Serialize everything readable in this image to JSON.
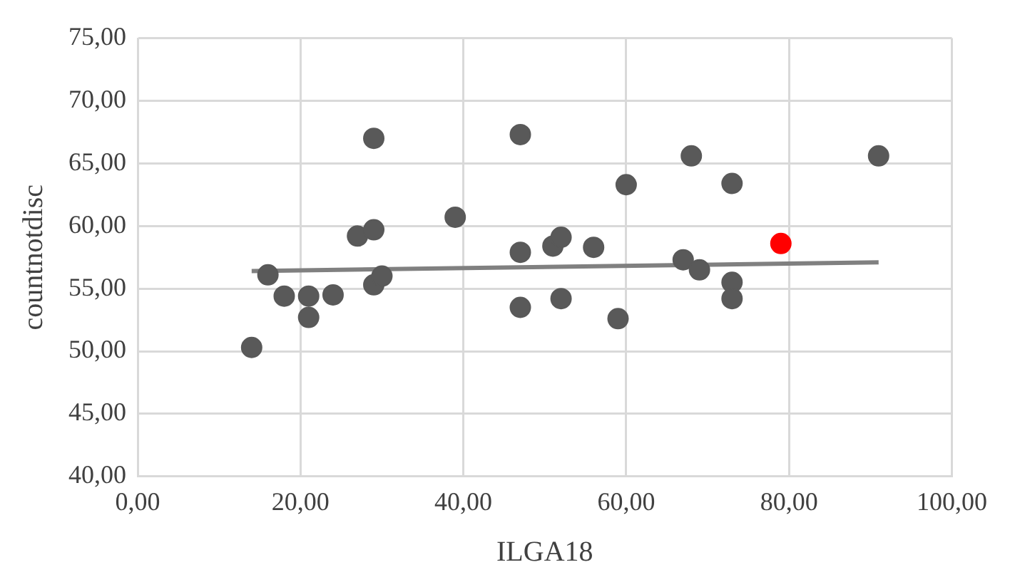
{
  "chart_data": {
    "type": "scatter",
    "xlabel": "ILGA18",
    "ylabel": "countnotdisc",
    "xlim": [
      0,
      100
    ],
    "ylim": [
      40,
      75
    ],
    "xticks": [
      {
        "value": 0,
        "label": "0,00"
      },
      {
        "value": 20,
        "label": "20,00"
      },
      {
        "value": 40,
        "label": "40,00"
      },
      {
        "value": 60,
        "label": "60,00"
      },
      {
        "value": 80,
        "label": "80,00"
      },
      {
        "value": 100,
        "label": "100,00"
      }
    ],
    "yticks": [
      {
        "value": 40,
        "label": "40,00"
      },
      {
        "value": 45,
        "label": "45,00"
      },
      {
        "value": 50,
        "label": "50,00"
      },
      {
        "value": 55,
        "label": "55,00"
      },
      {
        "value": 60,
        "label": "60,00"
      },
      {
        "value": 65,
        "label": "65,00"
      },
      {
        "value": 70,
        "label": "70,00"
      },
      {
        "value": 75,
        "label": "75,00"
      }
    ],
    "grid": true,
    "legend": false,
    "marker": "circle",
    "series": [
      {
        "color": "#595959",
        "x": [
          14,
          16,
          18,
          21,
          21,
          24,
          27,
          29,
          29,
          29,
          30,
          39,
          47,
          47,
          47,
          51,
          52,
          52,
          56,
          59,
          60,
          67,
          68,
          69,
          73,
          73,
          73,
          91
        ],
        "values": [
          50.3,
          56.1,
          54.4,
          54.4,
          52.7,
          54.5,
          59.2,
          59.7,
          67.0,
          55.3,
          56.0,
          60.7,
          67.3,
          57.9,
          53.5,
          58.4,
          59.1,
          54.2,
          58.3,
          52.6,
          63.3,
          57.3,
          65.6,
          56.5,
          63.4,
          55.5,
          54.2,
          65.6
        ]
      },
      {
        "color": "#ff0000",
        "x": [
          79
        ],
        "values": [
          58.6
        ]
      },
      {
        "type": "line",
        "color": "#808080",
        "x": [
          14,
          91
        ],
        "values": [
          56.4,
          57.1
        ],
        "marker": "none",
        "line_style": "solid"
      }
    ]
  }
}
